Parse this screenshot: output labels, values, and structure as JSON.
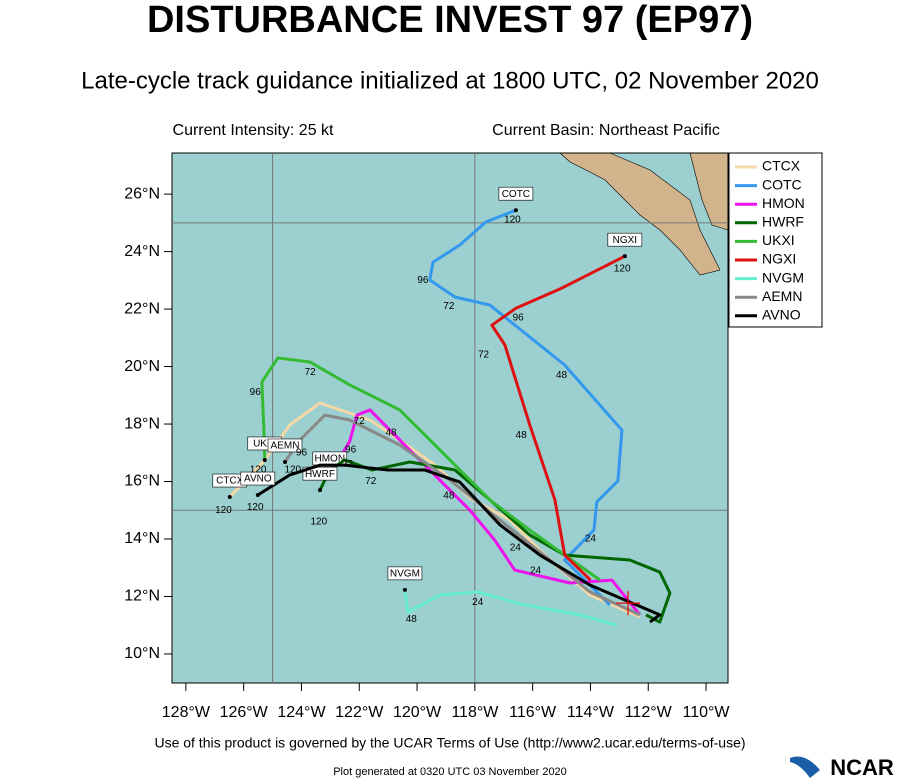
{
  "chart_data": {
    "type": "line",
    "title": "DISTURBANCE INVEST 97 (EP97)",
    "subtitle": "Late-cycle track guidance initialized at 1800 UTC, 02 November 2020",
    "intensity": "Current Intensity: 25 kt",
    "basin": "Current Basin: Northeast Pacific",
    "terms": "Use of this product is governed by the UCAR Terms of Use (http://www2.ucar.edu/terms-of-use)",
    "generated": "Plot generated at 0320 UTC   03 November 2020",
    "logo": "NCAR",
    "xlim": [
      -128.48,
      -109.24
    ],
    "ylim": [
      8.99,
      27.43
    ],
    "xticks": [
      {
        "value": -128,
        "label": "128°W"
      },
      {
        "value": -126,
        "label": "126°W"
      },
      {
        "value": -124,
        "label": "124°W"
      },
      {
        "value": -122,
        "label": "122°W"
      },
      {
        "value": -120,
        "label": "120°W"
      },
      {
        "value": -118,
        "label": "118°W"
      },
      {
        "value": -116,
        "label": "116°W"
      },
      {
        "value": -114,
        "label": "114°W"
      },
      {
        "value": -112,
        "label": "112°W"
      },
      {
        "value": -110,
        "label": "110°W"
      }
    ],
    "yticks": [
      {
        "value": 10,
        "label": "10°N"
      },
      {
        "value": 12,
        "label": "12°N"
      },
      {
        "value": 14,
        "label": "14°N"
      },
      {
        "value": 16,
        "label": "16°N"
      },
      {
        "value": 18,
        "label": "18°N"
      },
      {
        "value": 20,
        "label": "20°N"
      },
      {
        "value": 22,
        "label": "22°N"
      },
      {
        "value": 24,
        "label": "24°N"
      },
      {
        "value": 26,
        "label": "26°N"
      }
    ],
    "xgrid": [
      -125,
      -118
    ],
    "ygrid": [
      15,
      25
    ],
    "legend": "outside-top-right",
    "series": [
      {
        "name": "CTCX",
        "color": "#f5d8a8",
        "x": [
          -112.29,
          -114.02,
          -115.58,
          -116.79,
          -118.17,
          -119.38,
          -120.6,
          -121.63,
          -123.36,
          -124.4,
          -125.27,
          -126.48
        ],
        "values": [
          11.29,
          12.05,
          13.44,
          14.66,
          15.43,
          16.57,
          17.44,
          18.14,
          18.73,
          17.97,
          16.75,
          15.46
        ]
      },
      {
        "name": "COTC",
        "color": "#3399ee",
        "x": [
          -113.33,
          -114.89,
          -113.88,
          -113.78,
          -113.05,
          -112.91,
          -114.89,
          -117.48,
          -118.69,
          -119.56,
          -119.45,
          -118.52,
          -117.62,
          -116.58
        ],
        "values": [
          11.7,
          13.27,
          14.31,
          15.29,
          16.02,
          17.79,
          20.05,
          22.14,
          22.42,
          23.01,
          23.63,
          24.23,
          25.03,
          25.44
        ]
      },
      {
        "name": "HMON",
        "color": "#ee11ee",
        "x": [
          -112.29,
          -113.26,
          -114.71,
          -116.62,
          -117.31,
          -118.17,
          -119.56,
          -120.94,
          -121.63,
          -122.08,
          -122.33,
          -123.02
        ],
        "values": [
          11.36,
          12.57,
          12.47,
          12.92,
          13.96,
          15.0,
          16.4,
          17.79,
          18.49,
          18.31,
          17.4,
          16.23
        ]
      },
      {
        "name": "HWRF",
        "color": "#006600",
        "x": [
          -112.08,
          -111.6,
          -111.25,
          -111.6,
          -112.64,
          -114.89,
          -116.1,
          -117.48,
          -118.69,
          -120.25,
          -121.56,
          -122.5,
          -123.02,
          -123.36
        ],
        "values": [
          11.36,
          11.11,
          12.12,
          12.85,
          13.27,
          13.44,
          14.14,
          15.36,
          16.4,
          16.68,
          16.4,
          16.75,
          16.4,
          15.7
        ]
      },
      {
        "name": "UKXI",
        "color": "#33bb33",
        "x": [
          -113.67,
          -116.1,
          -117.48,
          -119.21,
          -120.6,
          -122.33,
          -123.71,
          -124.82,
          -125.37,
          -125.3,
          -125.27
        ],
        "values": [
          12.57,
          14.31,
          15.36,
          17.1,
          18.49,
          19.36,
          20.16,
          20.3,
          19.46,
          17.79,
          16.75
        ]
      },
      {
        "name": "NGXI",
        "color": "#dd1111",
        "x": [
          -114.0,
          -114.89,
          -115.23,
          -116.1,
          -116.96,
          -117.41,
          -116.58,
          -114.99,
          -112.81
        ],
        "values": [
          12.57,
          13.44,
          15.36,
          17.97,
          20.75,
          21.44,
          22.03,
          22.73,
          23.84
        ]
      },
      {
        "name": "NVGM",
        "color": "#66eecc",
        "x": [
          -113.09,
          -114.37,
          -116.44,
          -117.89,
          -119.21,
          -120.32,
          -120.42
        ],
        "values": [
          11.0,
          11.36,
          11.74,
          12.16,
          12.05,
          11.46,
          12.23
        ]
      },
      {
        "name": "AEMN",
        "color": "#888888",
        "x": [
          -112.29,
          -114.02,
          -115.4,
          -117.13,
          -118.86,
          -120.6,
          -122.33,
          -123.19,
          -124.06,
          -124.57
        ],
        "values": [
          11.36,
          12.16,
          13.27,
          14.66,
          16.05,
          17.27,
          18.14,
          18.31,
          17.44,
          16.68
        ]
      },
      {
        "name": "AVNO",
        "color": "#000000",
        "x": [
          -111.94,
          -111.6,
          -114.02,
          -115.75,
          -117.13,
          -118.52,
          -119.73,
          -121.0,
          -122.5,
          -123.36,
          -124.4,
          -125.51
        ],
        "values": [
          11.11,
          11.36,
          12.4,
          13.44,
          14.49,
          15.98,
          16.4,
          16.4,
          16.57,
          16.57,
          16.23,
          15.53
        ]
      }
    ],
    "annotations": [
      {
        "text": "120",
        "x": -116.7,
        "y": 25.1
      },
      {
        "text": "96",
        "x": -119.8,
        "y": 23.0
      },
      {
        "text": "72",
        "x": -118.9,
        "y": 22.1
      },
      {
        "text": "48",
        "x": -115.0,
        "y": 19.7
      },
      {
        "text": "24",
        "x": -114.0,
        "y": 14.0
      },
      {
        "text": "120",
        "x": -112.9,
        "y": 23.4
      },
      {
        "text": "96",
        "x": -116.5,
        "y": 21.7
      },
      {
        "text": "72",
        "x": -117.7,
        "y": 20.4
      },
      {
        "text": "48",
        "x": -116.4,
        "y": 17.6
      },
      {
        "text": "96",
        "x": -125.6,
        "y": 19.1
      },
      {
        "text": "72",
        "x": -123.7,
        "y": 19.8
      },
      {
        "text": "72",
        "x": -122.0,
        "y": 18.1
      },
      {
        "text": "96",
        "x": -122.3,
        "y": 17.1
      },
      {
        "text": "72",
        "x": -122.4,
        "y": 16.6
      },
      {
        "text": "48",
        "x": -120.9,
        "y": 17.7
      },
      {
        "text": "48",
        "x": -118.9,
        "y": 15.5
      },
      {
        "text": "48",
        "x": -120.2,
        "y": 11.2
      },
      {
        "text": "24",
        "x": -117.9,
        "y": 11.8
      },
      {
        "text": "24",
        "x": -116.6,
        "y": 13.7
      },
      {
        "text": "24",
        "x": -115.9,
        "y": 12.9
      },
      {
        "text": "96",
        "x": -124.0,
        "y": 17.0
      },
      {
        "text": "72",
        "x": -121.6,
        "y": 16.0
      },
      {
        "text": "120",
        "x": -126.7,
        "y": 15.0
      },
      {
        "text": "120",
        "x": -125.6,
        "y": 15.1
      },
      {
        "text": "120",
        "x": -125.5,
        "y": 16.4
      },
      {
        "text": "120",
        "x": -124.3,
        "y": 16.4
      },
      {
        "text": "120",
        "x": -123.4,
        "y": 14.6
      }
    ]
  }
}
